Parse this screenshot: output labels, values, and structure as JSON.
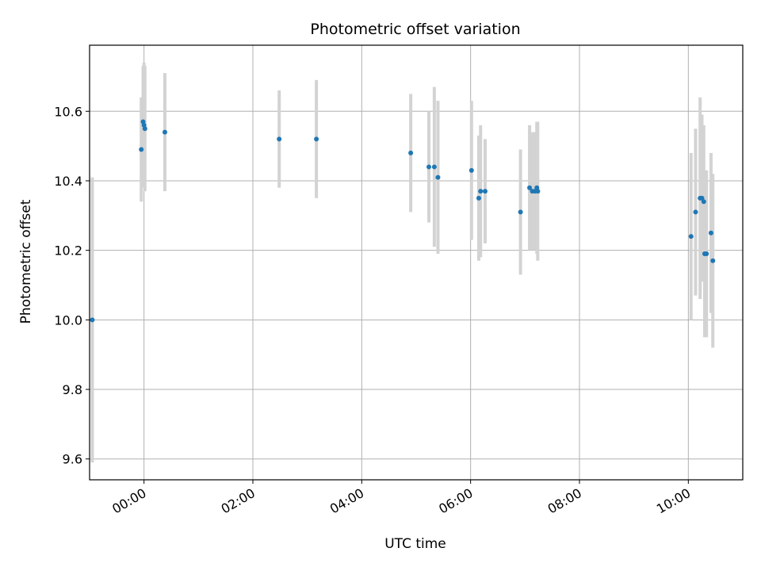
{
  "chart_data": {
    "type": "scatter",
    "title": "Photometric offset variation",
    "xlabel": "UTC time",
    "ylabel": "Photometric offset",
    "x_axis_type": "time",
    "xlim": [
      "-01:00",
      "11:00"
    ],
    "ylim": [
      9.54,
      10.79
    ],
    "x_ticks": [
      "00:00",
      "02:00",
      "04:00",
      "06:00",
      "08:00",
      "10:00"
    ],
    "y_ticks": [
      "9.6",
      "9.8",
      "10.0",
      "10.2",
      "10.4",
      "10.6"
    ],
    "grid": true,
    "legend": "none",
    "colors": {
      "point": "#1f77b4",
      "errorbar": "#d3d3d3",
      "grid": "#b0b0b0"
    },
    "series": [
      {
        "points": [
          {
            "x": "-00:57",
            "y": 10.0,
            "err": 0.41
          },
          {
            "x": "-00:03",
            "y": 10.49,
            "err": 0.15
          },
          {
            "x": "-00:01",
            "y": 10.57,
            "err": 0.16
          },
          {
            "x": "00:00",
            "y": 10.56,
            "err": 0.18
          },
          {
            "x": "00:01",
            "y": 10.55,
            "err": 0.18
          },
          {
            "x": "00:23",
            "y": 10.54,
            "err": 0.17
          },
          {
            "x": "02:29",
            "y": 10.52,
            "err": 0.14
          },
          {
            "x": "03:10",
            "y": 10.52,
            "err": 0.17
          },
          {
            "x": "04:54",
            "y": 10.48,
            "err": 0.17
          },
          {
            "x": "05:14",
            "y": 10.44,
            "err": 0.16
          },
          {
            "x": "05:20",
            "y": 10.44,
            "err": 0.23
          },
          {
            "x": "05:24",
            "y": 10.41,
            "err": 0.22
          },
          {
            "x": "06:01",
            "y": 10.43,
            "err": 0.2
          },
          {
            "x": "06:09",
            "y": 10.35,
            "err": 0.18
          },
          {
            "x": "06:11",
            "y": 10.37,
            "err": 0.19
          },
          {
            "x": "06:16",
            "y": 10.37,
            "err": 0.15
          },
          {
            "x": "06:55",
            "y": 10.31,
            "err": 0.18
          },
          {
            "x": "07:05",
            "y": 10.38,
            "err": 0.18
          },
          {
            "x": "07:08",
            "y": 10.37,
            "err": 0.17
          },
          {
            "x": "07:11",
            "y": 10.37,
            "err": 0.17
          },
          {
            "x": "07:13",
            "y": 10.38,
            "err": 0.19
          },
          {
            "x": "07:14",
            "y": 10.37,
            "err": 0.2
          },
          {
            "x": "10:03",
            "y": 10.24,
            "err": 0.24
          },
          {
            "x": "10:08",
            "y": 10.31,
            "err": 0.24
          },
          {
            "x": "10:13",
            "y": 10.35,
            "err": 0.29
          },
          {
            "x": "10:15",
            "y": 10.35,
            "err": 0.24
          },
          {
            "x": "10:17",
            "y": 10.34,
            "err": 0.22
          },
          {
            "x": "10:18",
            "y": 10.19,
            "err": 0.24
          },
          {
            "x": "10:20",
            "y": 10.19,
            "err": 0.24
          },
          {
            "x": "10:25",
            "y": 10.25,
            "err": 0.23
          },
          {
            "x": "10:27",
            "y": 10.17,
            "err": 0.25
          }
        ]
      }
    ]
  }
}
